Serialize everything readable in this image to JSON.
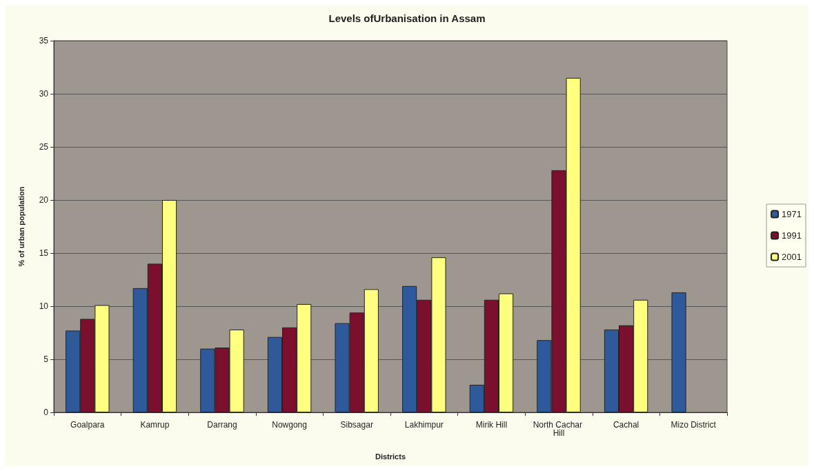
{
  "chart_data": {
    "type": "bar",
    "title": "Levels ofUrbanisation in Assam",
    "xlabel": "Districts",
    "ylabel": "% of urban population",
    "categories": [
      "Goalpara",
      "Kamrup",
      "Darrang",
      "Nowgong",
      "Sibsagar",
      "Lakhimpur",
      "Mirik Hill",
      "North Cachar Hill",
      "Cachal",
      "Mizo District"
    ],
    "series": [
      {
        "name": "1971",
        "color": "#2e5a9c",
        "values": [
          7.7,
          11.7,
          6.0,
          7.1,
          8.4,
          11.9,
          2.6,
          6.8,
          7.8,
          11.3
        ]
      },
      {
        "name": "1991",
        "color": "#7a0f2e",
        "values": [
          8.8,
          14.0,
          6.1,
          8.0,
          9.4,
          10.6,
          10.6,
          22.8,
          8.2,
          null
        ]
      },
      {
        "name": "2001",
        "color": "#ffff80",
        "values": [
          10.1,
          20.0,
          7.8,
          10.2,
          11.6,
          14.6,
          11.2,
          31.5,
          10.6,
          null
        ]
      }
    ],
    "ylim": [
      0,
      35
    ],
    "yticks": [
      0,
      5,
      10,
      15,
      20,
      25,
      30,
      35
    ],
    "grid": "y",
    "legend": "right"
  }
}
